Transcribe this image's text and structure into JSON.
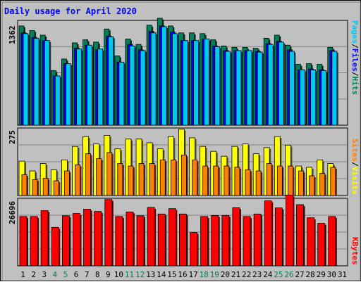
{
  "title": "Daily usage for April 2020",
  "colors": {
    "background": "#c0c0c0",
    "title": "#0000ff",
    "hits": "#00805c",
    "files": "#0000ff",
    "pages": "#00c8f0",
    "visits": "#ffff00",
    "sites": "#ff8000",
    "kbytes": "#ff0000",
    "weekend_day": "#00805c"
  },
  "panels": {
    "top": {
      "max_label": "1362",
      "legend": [
        "Pages",
        "Files",
        "Hits"
      ]
    },
    "middle": {
      "max_label": "275",
      "legend": [
        "Sites",
        "Visits"
      ]
    },
    "bottom": {
      "max_label": "26696",
      "legend": [
        "KBytes"
      ]
    }
  },
  "chart_data": [
    {
      "type": "bar",
      "title": "Daily usage for April 2020",
      "categories": [
        "1",
        "2",
        "3",
        "4",
        "5",
        "6",
        "7",
        "8",
        "9",
        "10",
        "11",
        "12",
        "13",
        "14",
        "15",
        "16",
        "17",
        "18",
        "19",
        "20",
        "21",
        "22",
        "23",
        "24",
        "25",
        "26",
        "27",
        "28",
        "29",
        "30",
        "31"
      ],
      "weekend_days": [
        "4",
        "5",
        "11",
        "12",
        "18",
        "19",
        "25",
        "26"
      ],
      "ylim": [
        0,
        1362
      ],
      "series": [
        {
          "name": "Hits",
          "values": [
            1290,
            1230,
            1170,
            710,
            860,
            1070,
            1110,
            1080,
            1250,
            900,
            1120,
            1050,
            1300,
            1390,
            1290,
            1200,
            1200,
            1190,
            1110,
            1030,
            1010,
            1010,
            1000,
            1130,
            1170,
            1040,
            790,
            800,
            790,
            1010,
            null
          ]
        },
        {
          "name": "Files",
          "values": [
            1200,
            1140,
            1100,
            640,
            800,
            1000,
            1040,
            980,
            1160,
            820,
            1050,
            980,
            1220,
            1290,
            1210,
            1100,
            1100,
            1120,
            1030,
            970,
            970,
            970,
            960,
            1060,
            1090,
            980,
            720,
            730,
            720,
            970,
            null
          ]
        },
        {
          "name": "Pages",
          "values": [
            1190,
            1130,
            1100,
            640,
            800,
            990,
            1040,
            990,
            1150,
            820,
            1030,
            970,
            1200,
            1280,
            1190,
            1100,
            1100,
            1120,
            1020,
            960,
            970,
            970,
            950,
            1050,
            1080,
            960,
            720,
            720,
            710,
            960,
            null
          ]
        }
      ]
    },
    {
      "type": "bar",
      "categories": [
        "1",
        "2",
        "3",
        "4",
        "5",
        "6",
        "7",
        "8",
        "9",
        "10",
        "11",
        "12",
        "13",
        "14",
        "15",
        "16",
        "17",
        "18",
        "19",
        "20",
        "21",
        "22",
        "23",
        "24",
        "25",
        "26",
        "27",
        "28",
        "29",
        "30",
        "31"
      ],
      "ylim": [
        0,
        275
      ],
      "series": [
        {
          "name": "Visits",
          "values": [
            140,
            100,
            130,
            105,
            145,
            200,
            240,
            210,
            245,
            190,
            230,
            230,
            215,
            190,
            240,
            270,
            235,
            200,
            180,
            160,
            200,
            210,
            170,
            195,
            240,
            205,
            120,
            115,
            145,
            130,
            null
          ]
        },
        {
          "name": "Sites",
          "values": [
            85,
            65,
            70,
            60,
            100,
            125,
            170,
            150,
            175,
            130,
            120,
            130,
            130,
            145,
            145,
            165,
            145,
            120,
            120,
            120,
            115,
            105,
            100,
            130,
            120,
            120,
            100,
            80,
            90,
            115,
            null
          ]
        }
      ]
    },
    {
      "type": "bar",
      "categories": [
        "1",
        "2",
        "3",
        "4",
        "5",
        "6",
        "7",
        "8",
        "9",
        "10",
        "11",
        "12",
        "13",
        "14",
        "15",
        "16",
        "17",
        "18",
        "19",
        "20",
        "21",
        "22",
        "23",
        "24",
        "25",
        "26",
        "27",
        "28",
        "29",
        "30",
        "31"
      ],
      "ylim": [
        0,
        26696
      ],
      "series": [
        {
          "name": "KBytes",
          "values": [
            19500,
            19500,
            21800,
            15200,
            19800,
            20700,
            22400,
            21500,
            26200,
            19500,
            21300,
            19800,
            23100,
            20500,
            22600,
            20500,
            13200,
            19500,
            19900,
            19900,
            23000,
            19500,
            20500,
            25700,
            22900,
            28000,
            24200,
            19000,
            16800,
            19500,
            null
          ]
        }
      ]
    }
  ]
}
